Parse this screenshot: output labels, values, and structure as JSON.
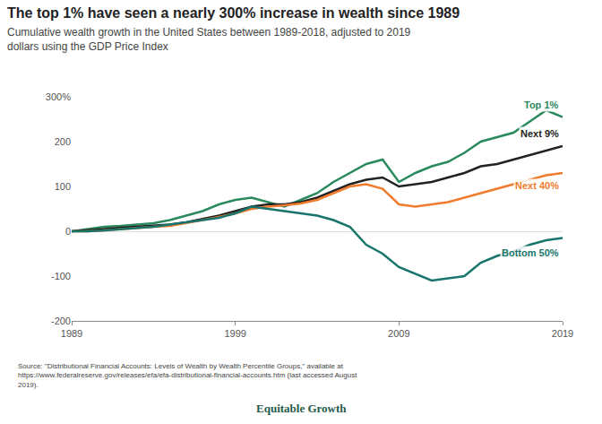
{
  "chart_data": {
    "type": "line",
    "title": "The top 1% have seen a nearly 300% increase in wealth since 1989",
    "subtitle": "Cumulative wealth growth in the United States between 1989-2018, adjusted to 2019 dollars using the GDP Price Index",
    "source": "Source: \"Distributional Financial Accounts: Levels of Wealth by Wealth Percentile Groups,\" available at https://www.federalreserve.gov/releases/efa/efa-distributional-financial-accounts.htm (last accessed August 2019).",
    "logo": "Equitable Growth",
    "x": [
      1989,
      1990,
      1991,
      1992,
      1993,
      1994,
      1995,
      1996,
      1997,
      1998,
      1999,
      2000,
      2001,
      2002,
      2003,
      2004,
      2005,
      2006,
      2007,
      2008,
      2009,
      2010,
      2011,
      2012,
      2013,
      2014,
      2015,
      2016,
      2017,
      2018,
      2019
    ],
    "series": [
      {
        "name": "Top 1%",
        "color": "#2a8a5e",
        "values": [
          0,
          5,
          10,
          12,
          15,
          18,
          25,
          35,
          45,
          60,
          70,
          75,
          65,
          55,
          70,
          85,
          110,
          130,
          150,
          160,
          110,
          130,
          145,
          155,
          175,
          200,
          210,
          220,
          245,
          270,
          255
        ]
      },
      {
        "name": "Next 9%",
        "color": "#222222",
        "values": [
          0,
          2,
          5,
          8,
          10,
          12,
          15,
          20,
          28,
          35,
          45,
          55,
          60,
          60,
          65,
          75,
          90,
          105,
          115,
          120,
          100,
          105,
          110,
          120,
          130,
          145,
          150,
          160,
          170,
          180,
          190
        ]
      },
      {
        "name": "Next 40%",
        "color": "#f07b2c",
        "values": [
          0,
          0,
          2,
          5,
          8,
          10,
          12,
          18,
          25,
          32,
          40,
          50,
          55,
          58,
          62,
          70,
          85,
          100,
          105,
          95,
          60,
          55,
          60,
          65,
          75,
          85,
          95,
          105,
          115,
          125,
          130
        ]
      },
      {
        "name": "Bottom 50%",
        "color": "#17756c",
        "values": [
          0,
          0,
          2,
          5,
          8,
          10,
          15,
          20,
          25,
          30,
          40,
          55,
          50,
          45,
          40,
          35,
          25,
          10,
          -30,
          -50,
          -80,
          -95,
          -110,
          -105,
          -100,
          -70,
          -55,
          -45,
          -30,
          -20,
          -15
        ]
      }
    ],
    "xlim": [
      1989,
      2019
    ],
    "xticks": [
      1989,
      1999,
      2009,
      2019
    ],
    "ylim": [
      -200,
      300
    ],
    "yticks": [
      {
        "value": 300,
        "label": "300%"
      },
      200,
      100,
      0,
      -100,
      -200
    ],
    "grid": false
  }
}
